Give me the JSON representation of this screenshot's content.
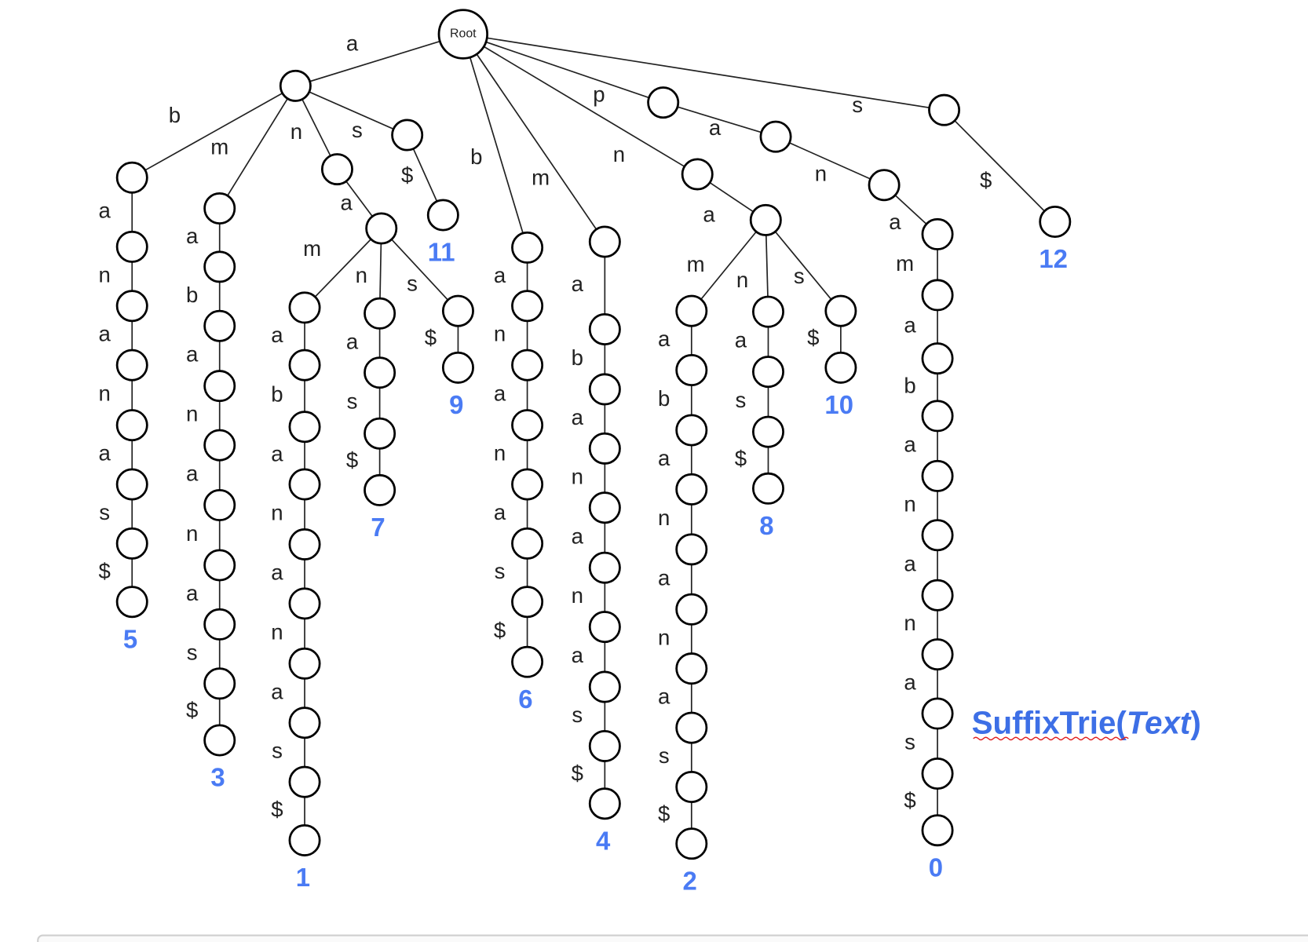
{
  "tree": {
    "label": "Root",
    "children": [
      {
        "edge": "a",
        "children": [
          {
            "edge": "b",
            "chain": [
              "a",
              "n",
              "a",
              "n",
              "a",
              "s",
              "$"
            ],
            "leaf": 5
          },
          {
            "edge": "m",
            "chain": [
              "a",
              "b",
              "a",
              "n",
              "a",
              "n",
              "a",
              "s",
              "$"
            ],
            "leaf": 3
          },
          {
            "edge": "n",
            "children": [
              {
                "edge": "a",
                "children": [
                  {
                    "edge": "m",
                    "chain": [
                      "a",
                      "b",
                      "a",
                      "n",
                      "a",
                      "n",
                      "a",
                      "s",
                      "$"
                    ],
                    "leaf": 1
                  },
                  {
                    "edge": "n",
                    "chain": [
                      "a",
                      "s",
                      "$"
                    ],
                    "leaf": 7
                  },
                  {
                    "edge": "s",
                    "chain": [
                      "$"
                    ],
                    "leaf": 9
                  }
                ]
              }
            ]
          },
          {
            "edge": "s",
            "chain": [
              "$"
            ],
            "leaf": 11
          }
        ]
      },
      {
        "edge": "b",
        "chain": [
          "a",
          "n",
          "a",
          "n",
          "a",
          "s",
          "$"
        ],
        "leaf": 6
      },
      {
        "edge": "m",
        "chain": [
          "a",
          "b",
          "a",
          "n",
          "a",
          "n",
          "a",
          "s",
          "$"
        ],
        "leaf": 4
      },
      {
        "edge": "n",
        "children": [
          {
            "edge": "a",
            "children": [
              {
                "edge": "m",
                "chain": [
                  "a",
                  "b",
                  "a",
                  "n",
                  "a",
                  "n",
                  "a",
                  "s",
                  "$"
                ],
                "leaf": 2
              },
              {
                "edge": "n",
                "chain": [
                  "a",
                  "s",
                  "$"
                ],
                "leaf": 8
              },
              {
                "edge": "s",
                "chain": [
                  "$"
                ],
                "leaf": 10
              }
            ]
          }
        ]
      },
      {
        "edge": "p",
        "children": [
          {
            "edge": "a",
            "children": [
              {
                "edge": "n",
                "children": [
                  {
                    "edge": "a",
                    "children": [
                      {
                        "edge": "m",
                        "chain": [
                          "a",
                          "b",
                          "a",
                          "n",
                          "a",
                          "n",
                          "a",
                          "s",
                          "$"
                        ],
                        "leaf": 0
                      }
                    ]
                  }
                ]
              }
            ]
          }
        ]
      },
      {
        "edge": "s",
        "chain": [
          "$"
        ],
        "leaf": 12
      }
    ]
  },
  "caption": {
    "name": "SuffixTrie(",
    "arg": "Text",
    "close": ")"
  }
}
